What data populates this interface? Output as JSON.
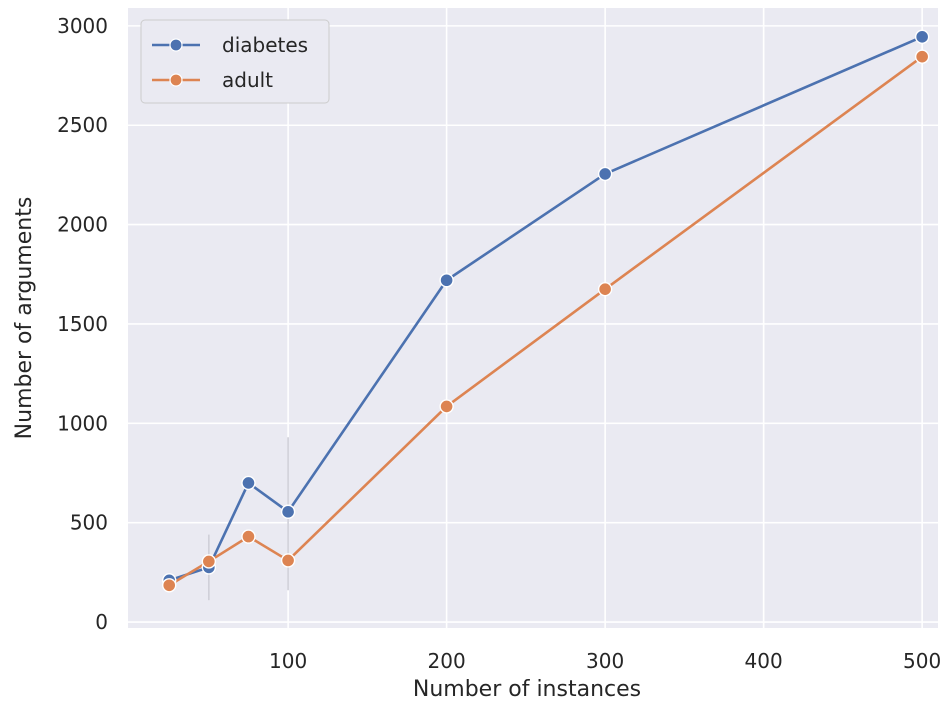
{
  "chart_data": {
    "type": "line",
    "title": "",
    "xlabel": "Number of instances",
    "ylabel": "Number of arguments",
    "xlim": [
      -1,
      510
    ],
    "ylim": [
      -30,
      3090
    ],
    "x_ticks": [
      100,
      200,
      300,
      400,
      500
    ],
    "y_ticks": [
      0,
      500,
      1000,
      1500,
      2000,
      2500,
      3000
    ],
    "grid": true,
    "legend_position": "top-left",
    "background": "#eaeaf2",
    "series": [
      {
        "name": "diabetes",
        "color": "#4c72b0",
        "x": [
          25,
          50,
          75,
          100,
          200,
          300,
          500
        ],
        "y": [
          210,
          275,
          700,
          555,
          1720,
          2255,
          2945
        ]
      },
      {
        "name": "adult",
        "color": "#dd8452",
        "x": [
          25,
          50,
          75,
          100,
          200,
          300,
          500
        ],
        "y": [
          185,
          305,
          430,
          310,
          1085,
          1675,
          2845
        ]
      }
    ],
    "error_bars": [
      {
        "x": 50,
        "low": 110,
        "high": 440
      },
      {
        "x": 100,
        "low": 160,
        "high": 930
      }
    ]
  }
}
